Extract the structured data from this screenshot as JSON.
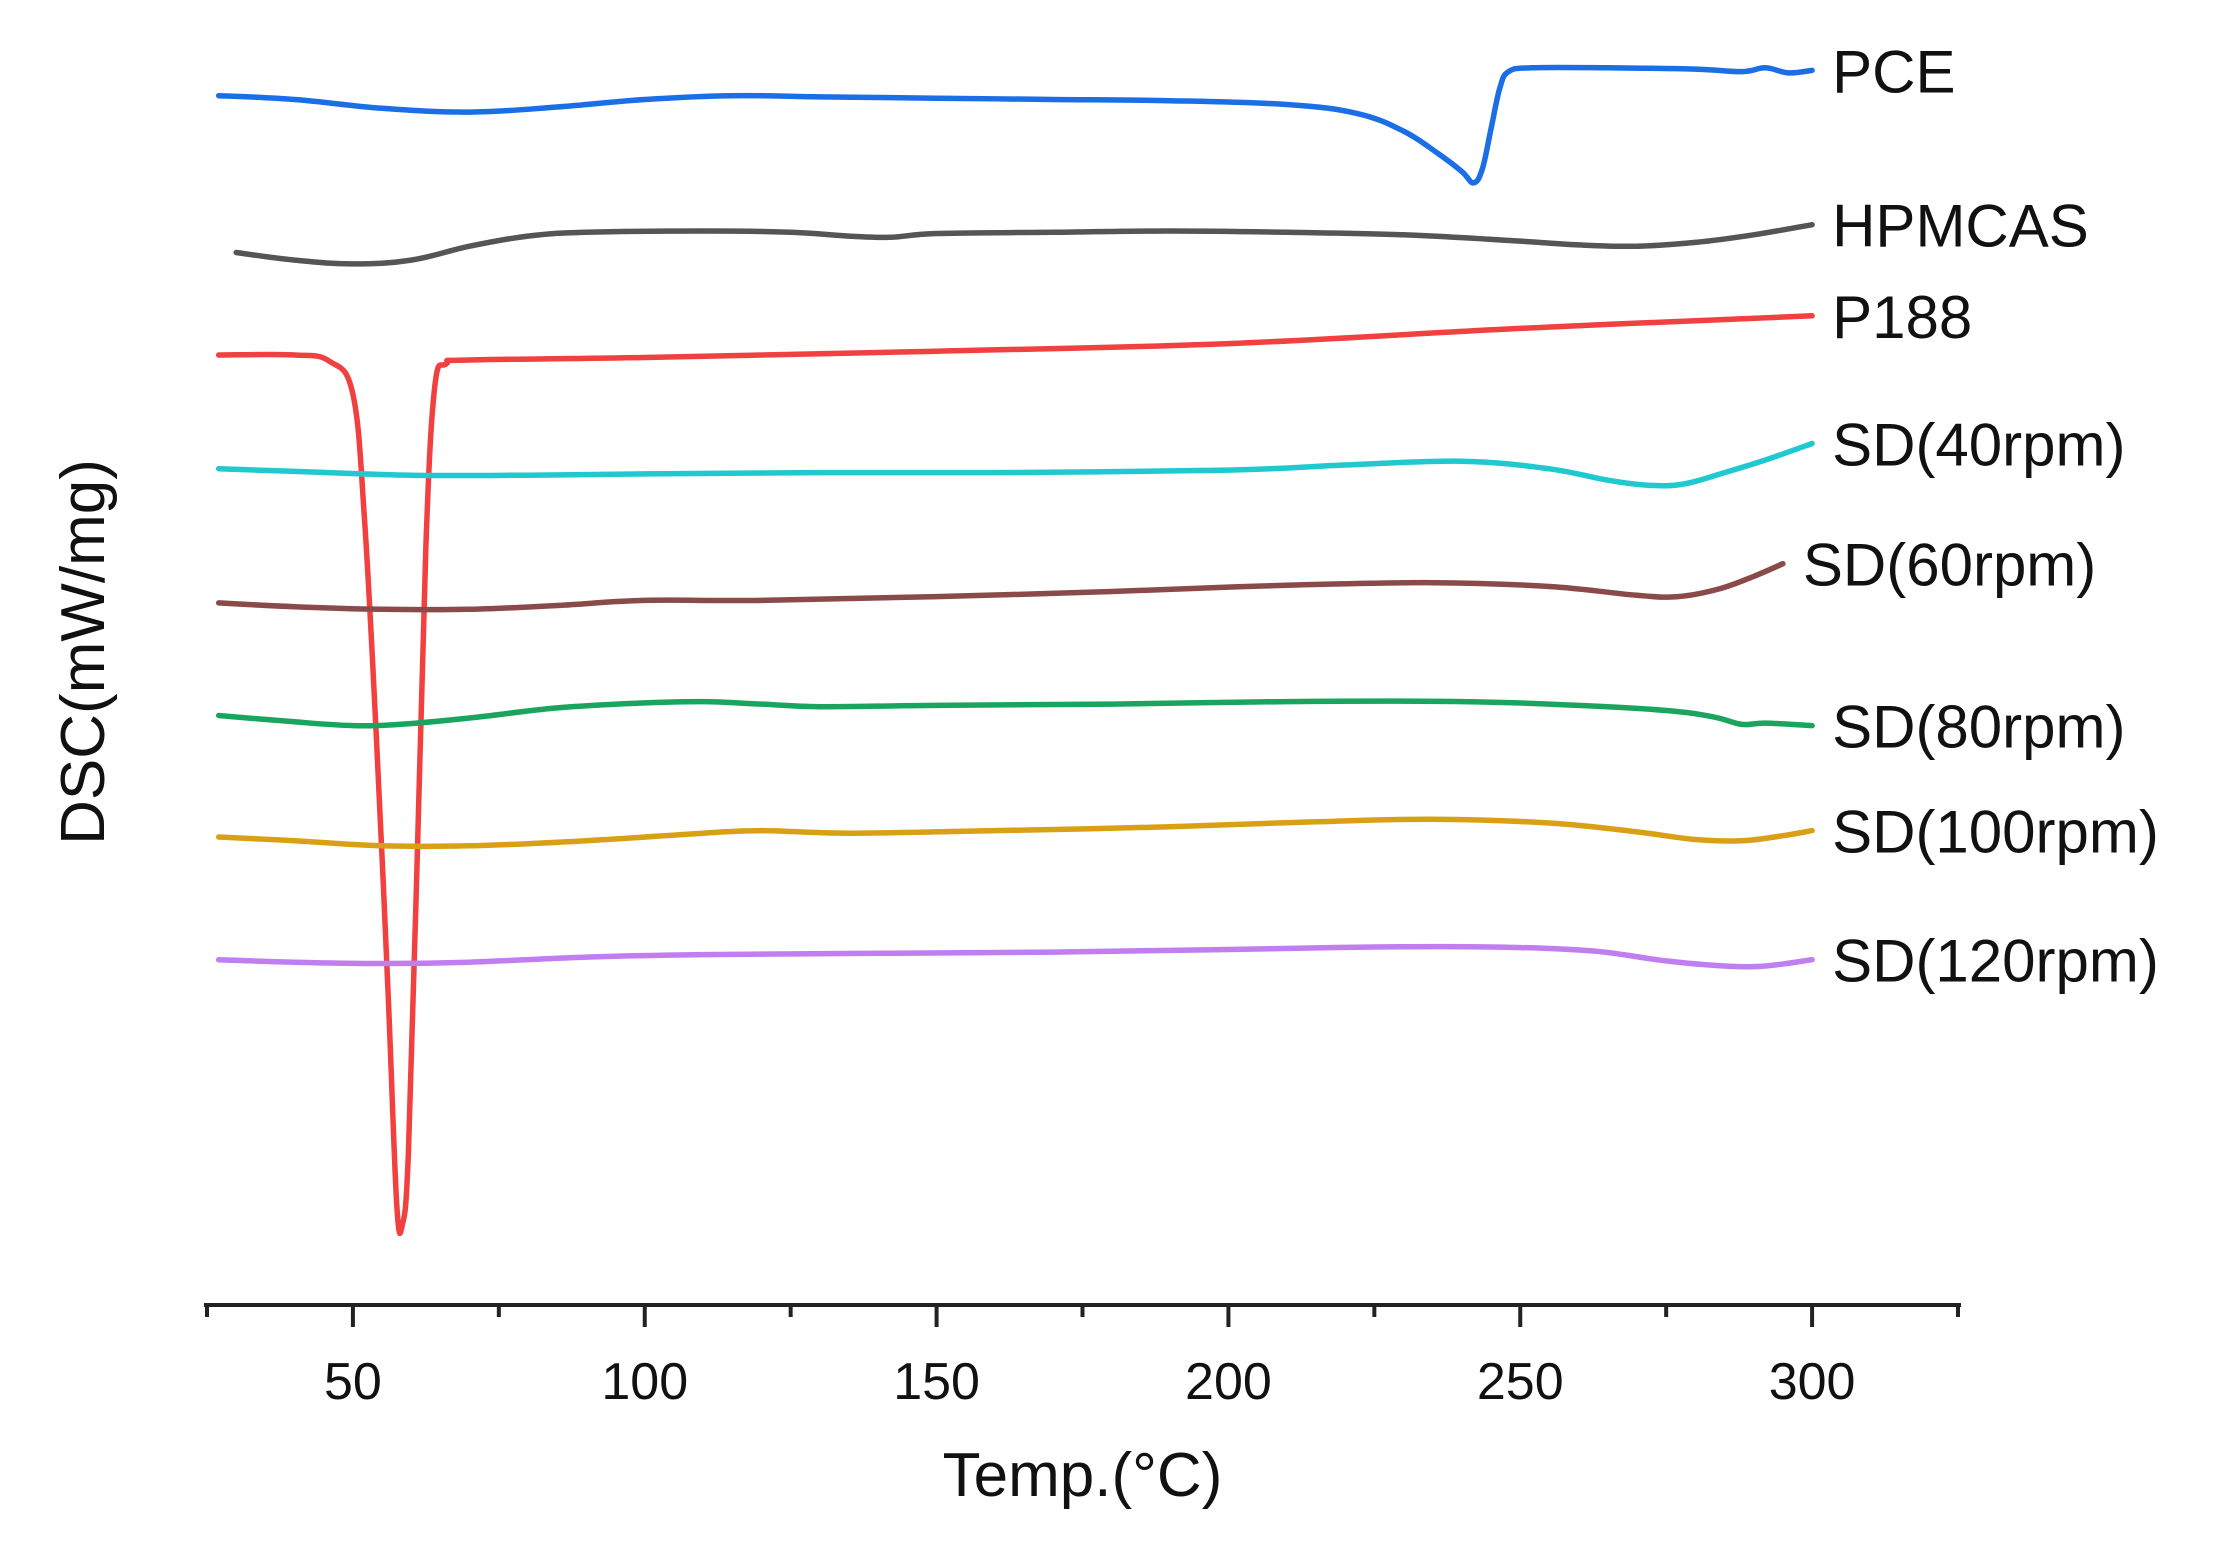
{
  "chart_data": {
    "type": "line",
    "xlabel": "Temp.(°C)",
    "ylabel": "DSC(mW/mg)",
    "xlim": [
      25,
      325
    ],
    "ylim": [
      0,
      100
    ],
    "x_ticks": [
      50,
      100,
      150,
      200,
      250,
      300
    ],
    "x_minor_ticks": [
      25,
      75,
      125,
      175,
      225,
      275,
      325
    ],
    "y_ticks_shown": false,
    "legend": "labels at right end of each curve",
    "series": [
      {
        "name": "PCE",
        "color": "#1a6ee6",
        "points": [
          [
            27,
            95.6
          ],
          [
            40,
            95.3
          ],
          [
            55,
            94.6
          ],
          [
            70,
            94.3
          ],
          [
            85,
            94.7
          ],
          [
            100,
            95.3
          ],
          [
            115,
            95.6
          ],
          [
            130,
            95.5
          ],
          [
            150,
            95.4
          ],
          [
            170,
            95.3
          ],
          [
            190,
            95.2
          ],
          [
            210,
            94.9
          ],
          [
            222,
            94.2
          ],
          [
            230,
            92.8
          ],
          [
            236,
            91.0
          ],
          [
            240,
            89.6
          ],
          [
            242,
            88.7
          ],
          [
            243.5,
            89.8
          ],
          [
            245,
            93.0
          ],
          [
            246.5,
            96.2
          ],
          [
            248,
            97.5
          ],
          [
            252,
            97.8
          ],
          [
            265,
            97.8
          ],
          [
            280,
            97.7
          ],
          [
            288,
            97.5
          ],
          [
            292,
            97.8
          ],
          [
            296,
            97.4
          ],
          [
            300,
            97.6
          ]
        ]
      },
      {
        "name": "HPMCAS",
        "color": "#555555",
        "points": [
          [
            30,
            83.2
          ],
          [
            40,
            82.6
          ],
          [
            50,
            82.3
          ],
          [
            60,
            82.6
          ],
          [
            70,
            83.7
          ],
          [
            80,
            84.5
          ],
          [
            90,
            84.8
          ],
          [
            110,
            84.9
          ],
          [
            125,
            84.8
          ],
          [
            135,
            84.5
          ],
          [
            142,
            84.4
          ],
          [
            150,
            84.7
          ],
          [
            170,
            84.8
          ],
          [
            190,
            84.9
          ],
          [
            210,
            84.8
          ],
          [
            230,
            84.6
          ],
          [
            250,
            84.1
          ],
          [
            260,
            83.8
          ],
          [
            270,
            83.7
          ],
          [
            280,
            84.0
          ],
          [
            290,
            84.6
          ],
          [
            300,
            85.4
          ]
        ]
      },
      {
        "name": "P188",
        "color": "#f04040",
        "points": [
          [
            27,
            75.1
          ],
          [
            40,
            75.1
          ],
          [
            46,
            74.6
          ],
          [
            50,
            72.0
          ],
          [
            52,
            62
          ],
          [
            54,
            45
          ],
          [
            56,
            25
          ],
          [
            57.5,
            8
          ],
          [
            58.5,
            6.4
          ],
          [
            59.5,
            12
          ],
          [
            61,
            35
          ],
          [
            62.5,
            60
          ],
          [
            64,
            72.5
          ],
          [
            66,
            74.4
          ],
          [
            70,
            74.7
          ],
          [
            100,
            74.9
          ],
          [
            150,
            75.4
          ],
          [
            200,
            76.0
          ],
          [
            250,
            77.2
          ],
          [
            300,
            78.2
          ]
        ]
      },
      {
        "name": "SD(40rpm)",
        "color": "#20c8d0",
        "points": [
          [
            27,
            66.1
          ],
          [
            40,
            65.9
          ],
          [
            60,
            65.6
          ],
          [
            80,
            65.6
          ],
          [
            100,
            65.7
          ],
          [
            130,
            65.8
          ],
          [
            160,
            65.8
          ],
          [
            200,
            66.0
          ],
          [
            220,
            66.4
          ],
          [
            240,
            66.7
          ],
          [
            255,
            66.1
          ],
          [
            265,
            65.2
          ],
          [
            272,
            64.8
          ],
          [
            278,
            64.9
          ],
          [
            285,
            65.8
          ],
          [
            292,
            66.8
          ],
          [
            300,
            68.1
          ]
        ]
      },
      {
        "name": "SD(60rpm)",
        "color": "#8b4a4a",
        "points": [
          [
            27,
            55.5
          ],
          [
            40,
            55.2
          ],
          [
            55,
            55.0
          ],
          [
            70,
            55.0
          ],
          [
            85,
            55.3
          ],
          [
            100,
            55.7
          ],
          [
            120,
            55.7
          ],
          [
            150,
            56.0
          ],
          [
            180,
            56.4
          ],
          [
            210,
            56.9
          ],
          [
            235,
            57.1
          ],
          [
            255,
            56.8
          ],
          [
            270,
            56.1
          ],
          [
            277,
            56.0
          ],
          [
            284,
            56.6
          ],
          [
            290,
            57.6
          ],
          [
            295,
            58.6
          ]
        ]
      },
      {
        "name": "SD(80rpm)",
        "color": "#1aa55f",
        "points": [
          [
            27,
            46.6
          ],
          [
            40,
            46.1
          ],
          [
            50,
            45.8
          ],
          [
            58,
            45.9
          ],
          [
            70,
            46.4
          ],
          [
            85,
            47.2
          ],
          [
            100,
            47.6
          ],
          [
            110,
            47.7
          ],
          [
            120,
            47.5
          ],
          [
            130,
            47.3
          ],
          [
            150,
            47.4
          ],
          [
            180,
            47.5
          ],
          [
            210,
            47.7
          ],
          [
            240,
            47.7
          ],
          [
            260,
            47.4
          ],
          [
            275,
            47.0
          ],
          [
            283,
            46.5
          ],
          [
            288,
            45.9
          ],
          [
            292,
            46.0
          ],
          [
            300,
            45.8
          ]
        ]
      },
      {
        "name": "SD(100rpm)",
        "color": "#daa015",
        "points": [
          [
            27,
            37.0
          ],
          [
            40,
            36.7
          ],
          [
            55,
            36.3
          ],
          [
            70,
            36.3
          ],
          [
            90,
            36.7
          ],
          [
            110,
            37.3
          ],
          [
            120,
            37.5
          ],
          [
            135,
            37.3
          ],
          [
            160,
            37.5
          ],
          [
            190,
            37.8
          ],
          [
            215,
            38.2
          ],
          [
            235,
            38.4
          ],
          [
            255,
            38.1
          ],
          [
            270,
            37.4
          ],
          [
            280,
            36.8
          ],
          [
            288,
            36.7
          ],
          [
            295,
            37.1
          ],
          [
            300,
            37.5
          ]
        ]
      },
      {
        "name": "SD(120rpm)",
        "color": "#c07ef0",
        "points": [
          [
            27,
            27.3
          ],
          [
            40,
            27.1
          ],
          [
            55,
            27.0
          ],
          [
            70,
            27.1
          ],
          [
            90,
            27.5
          ],
          [
            110,
            27.7
          ],
          [
            140,
            27.8
          ],
          [
            170,
            27.9
          ],
          [
            200,
            28.1
          ],
          [
            225,
            28.3
          ],
          [
            245,
            28.3
          ],
          [
            262,
            28.0
          ],
          [
            275,
            27.2
          ],
          [
            285,
            26.8
          ],
          [
            292,
            26.8
          ],
          [
            300,
            27.3
          ]
        ]
      }
    ]
  }
}
